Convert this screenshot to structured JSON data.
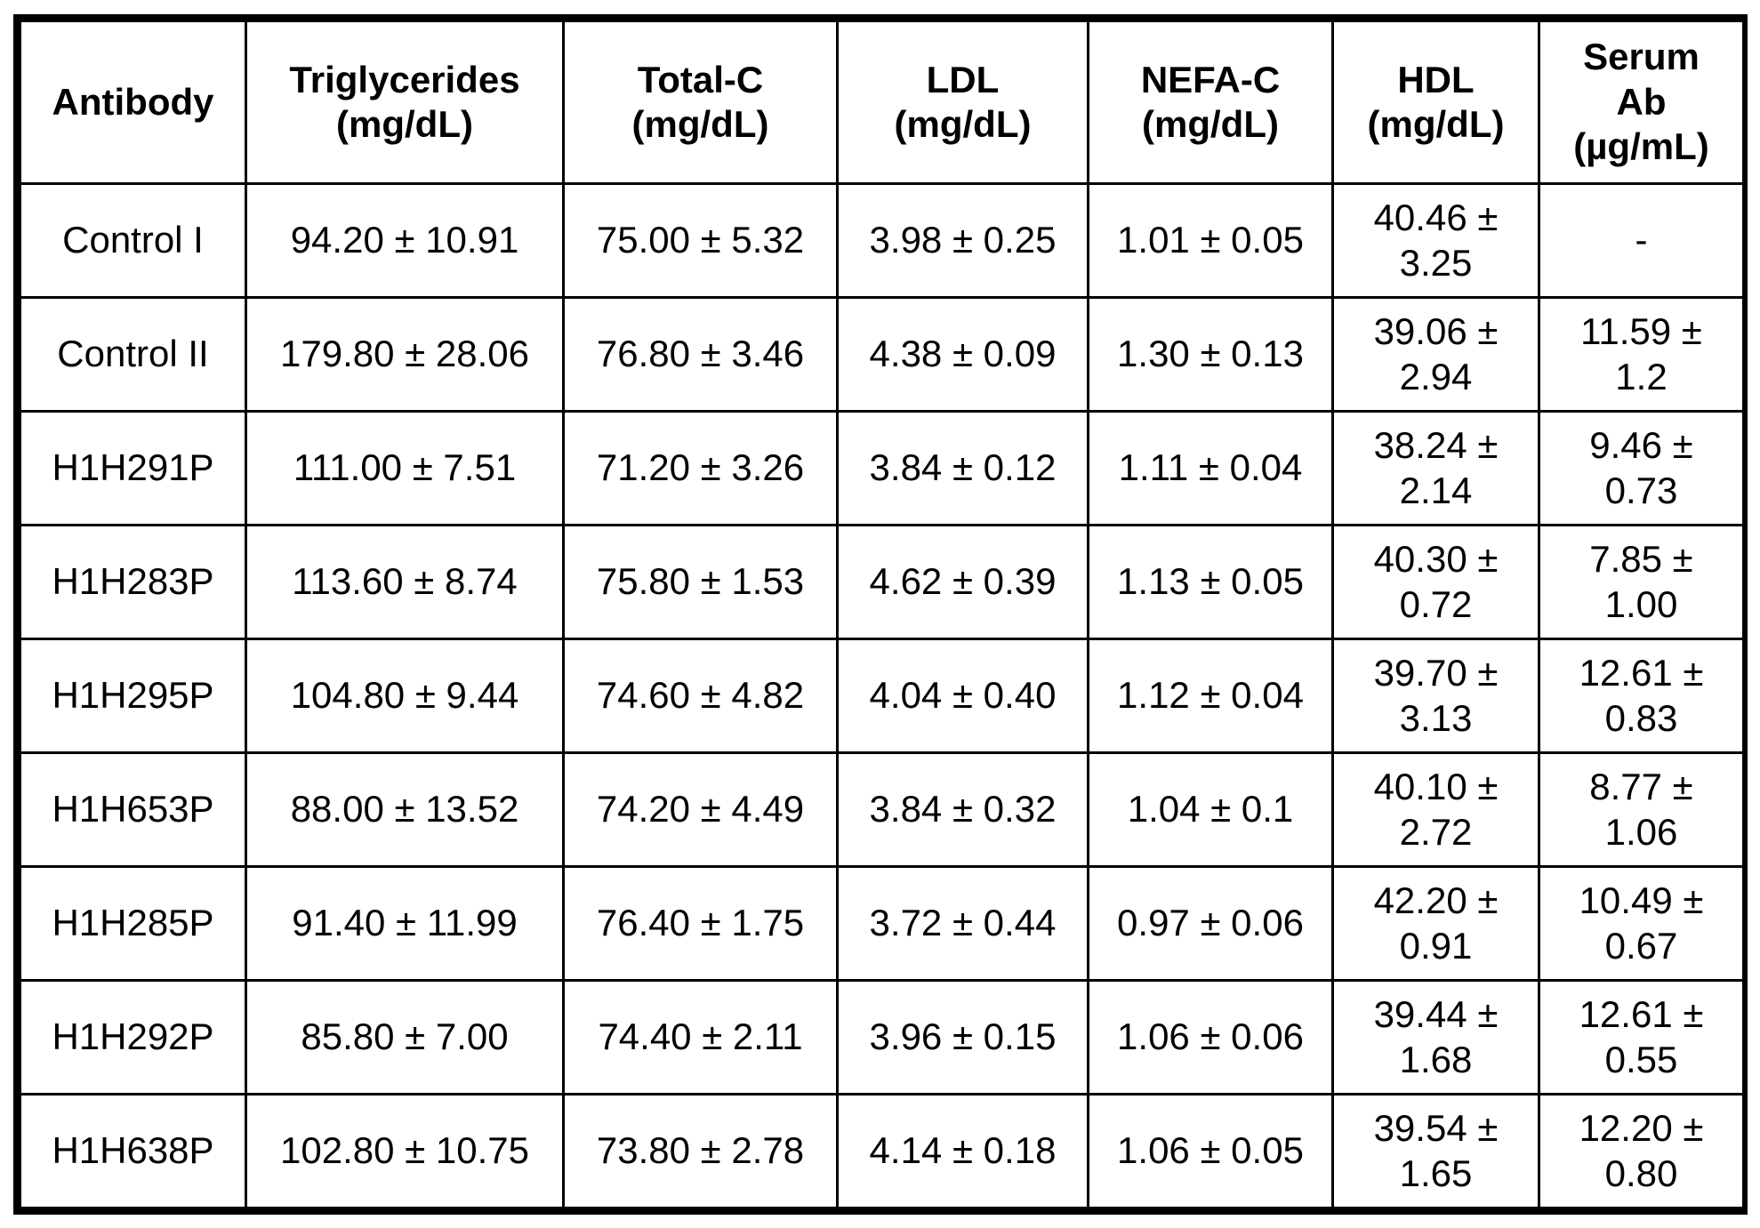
{
  "table": {
    "headers": [
      "Antibody",
      "Triglycerides\n(mg/dL)",
      "Total-C\n(mg/dL)",
      "LDL\n(mg/dL)",
      "NEFA-C\n(mg/dL)",
      "HDL\n(mg/dL)",
      "Serum\nAb\n(µg/mL)"
    ],
    "rows": [
      [
        "Control I",
        "94.20 ± 10.91",
        "75.00 ± 5.32",
        "3.98 ± 0.25",
        "1.01 ± 0.05",
        "40.46 ±\n3.25",
        "-"
      ],
      [
        "Control II",
        "179.80 ± 28.06",
        "76.80 ± 3.46",
        "4.38 ± 0.09",
        "1.30 ± 0.13",
        "39.06 ±\n2.94",
        "11.59 ±\n1.2"
      ],
      [
        "H1H291P",
        "111.00 ± 7.51",
        "71.20 ± 3.26",
        "3.84 ± 0.12",
        "1.11 ± 0.04",
        "38.24 ±\n2.14",
        "9.46 ±\n0.73"
      ],
      [
        "H1H283P",
        "113.60 ± 8.74",
        "75.80 ± 1.53",
        "4.62 ± 0.39",
        "1.13 ± 0.05",
        "40.30 ±\n0.72",
        "7.85 ±\n1.00"
      ],
      [
        "H1H295P",
        "104.80 ± 9.44",
        "74.60 ± 4.82",
        "4.04 ± 0.40",
        "1.12 ± 0.04",
        "39.70 ±\n3.13",
        "12.61 ±\n0.83"
      ],
      [
        "H1H653P",
        "88.00 ± 13.52",
        "74.20 ± 4.49",
        "3.84 ± 0.32",
        "1.04 ± 0.1",
        "40.10 ±\n2.72",
        "8.77 ±\n1.06"
      ],
      [
        "H1H285P",
        "91.40 ± 11.99",
        "76.40 ± 1.75",
        "3.72 ± 0.44",
        "0.97 ± 0.06",
        "42.20 ±\n0.91",
        "10.49 ±\n0.67"
      ],
      [
        "H1H292P",
        "85.80 ± 7.00",
        "74.40 ± 2.11",
        "3.96 ± 0.15",
        "1.06 ± 0.06",
        "39.44 ±\n1.68",
        "12.61 ±\n0.55"
      ],
      [
        "H1H638P",
        "102.80 ± 10.75",
        "73.80 ± 2.78",
        "4.14 ± 0.18",
        "1.06 ± 0.05",
        "39.54 ±\n1.65",
        "12.20 ±\n0.80"
      ]
    ]
  }
}
